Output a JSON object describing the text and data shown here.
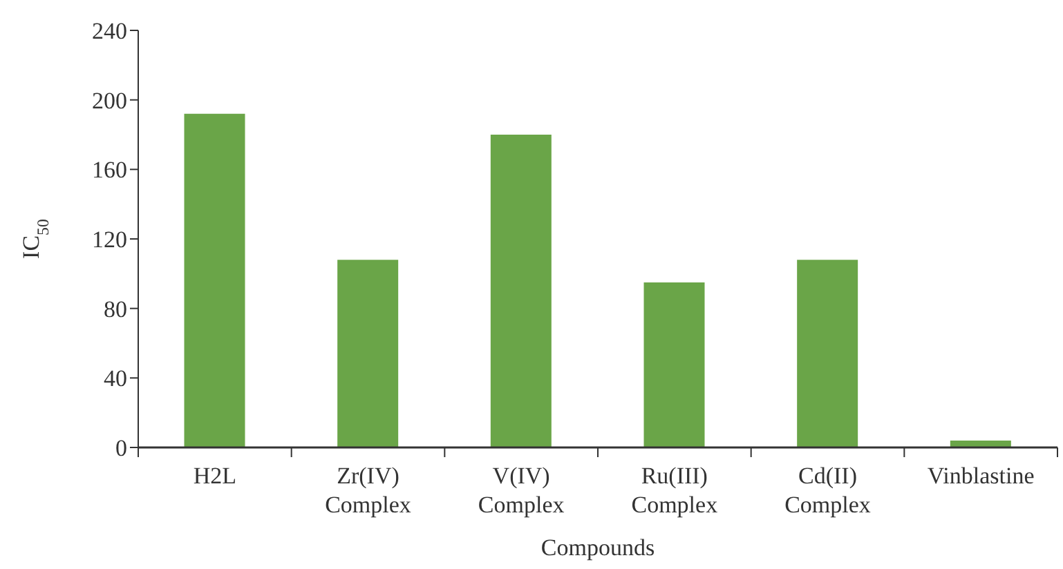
{
  "chart_data": {
    "type": "bar",
    "ylabel": "IC$_{50}$",
    "xlabel": "Compounds",
    "categories": [
      "H2L",
      "Zr(IV) Complex",
      "V(IV) Complex",
      "Ru(III) Complex",
      "Cd(II) Complex",
      "Vinblastine"
    ],
    "values": [
      192,
      108,
      180,
      95,
      108,
      4
    ],
    "color": "#6aa548",
    "ylim": [
      0,
      240
    ],
    "yticks": [
      0,
      40,
      80,
      120,
      160,
      200,
      240
    ],
    "grid": false
  }
}
